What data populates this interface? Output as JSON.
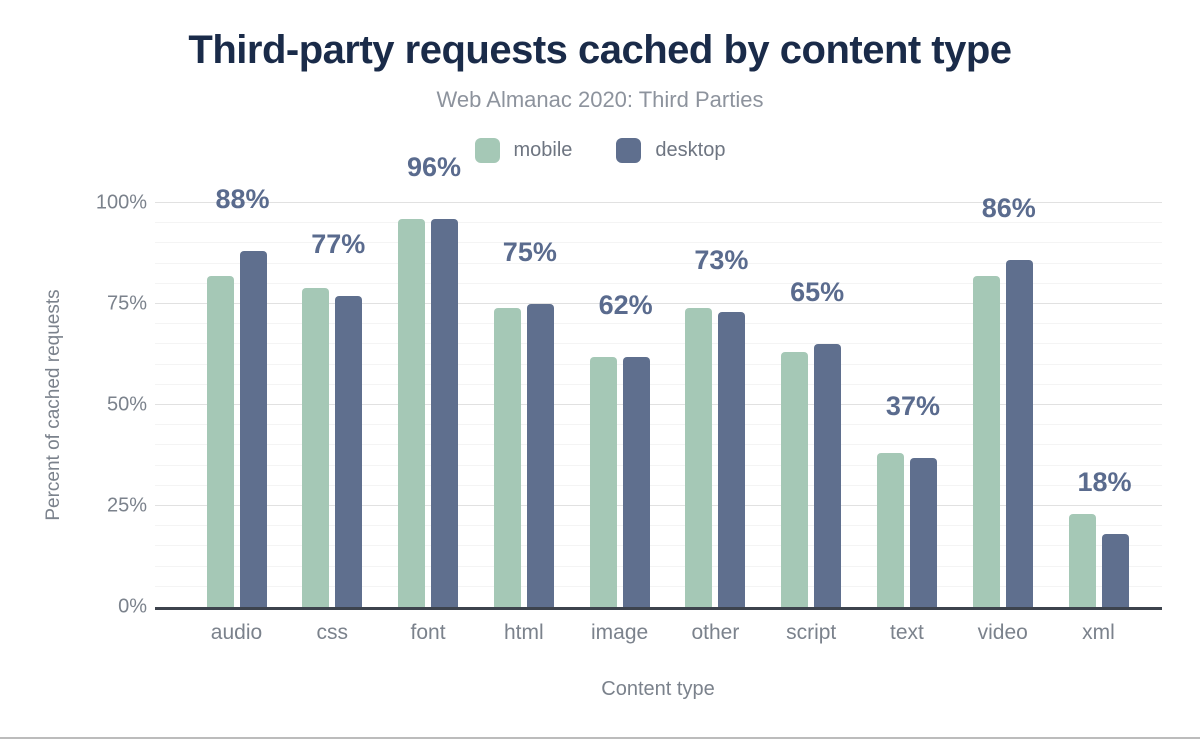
{
  "title": "Third-party requests cached by content type",
  "subtitle": "Web Almanac 2020: Third Parties",
  "legend": [
    {
      "label": "mobile",
      "color": "#a5c8b6"
    },
    {
      "label": "desktop",
      "color": "#5f6f8e"
    }
  ],
  "y_axis": {
    "label": "Percent of cached requests",
    "ticks": [
      {
        "value": 0,
        "label": "0%"
      },
      {
        "value": 25,
        "label": "25%"
      },
      {
        "value": 50,
        "label": "50%"
      },
      {
        "value": 75,
        "label": "75%"
      },
      {
        "value": 100,
        "label": "100%"
      }
    ]
  },
  "x_axis": {
    "label": "Content type"
  },
  "colors": {
    "title": "#1a2b49",
    "subtitle": "#8d939d",
    "axis_text": "#7b828c",
    "axis_line": "#3d434d",
    "bar_label": "#5a6b8e",
    "mobile_bar": "#a5c8b6",
    "desktop_bar": "#5f6f8e",
    "grid_major": "#e1e1e1",
    "grid_minor": "#f4f4f4"
  },
  "chart_data": {
    "type": "bar",
    "title": "Third-party requests cached by content type",
    "subtitle": "Web Almanac 2020: Third Parties",
    "xlabel": "Content type",
    "ylabel": "Percent of cached requests",
    "ylim": [
      0,
      100
    ],
    "grid": {
      "major_interval": 25,
      "minor_interval": 5
    },
    "legend_position": "top",
    "categories": [
      "audio",
      "css",
      "font",
      "html",
      "image",
      "other",
      "script",
      "text",
      "video",
      "xml"
    ],
    "series": [
      {
        "name": "mobile",
        "color": "#a5c8b6",
        "values": [
          82,
          79,
          96,
          74,
          62,
          74,
          63,
          38,
          82,
          23
        ]
      },
      {
        "name": "desktop",
        "color": "#5f6f8e",
        "values": [
          88,
          77,
          96,
          75,
          62,
          73,
          65,
          37,
          86,
          18
        ]
      }
    ],
    "bar_labels": [
      "88%",
      "77%",
      "96%",
      "75%",
      "62%",
      "73%",
      "65%",
      "37%",
      "86%",
      "18%"
    ]
  }
}
